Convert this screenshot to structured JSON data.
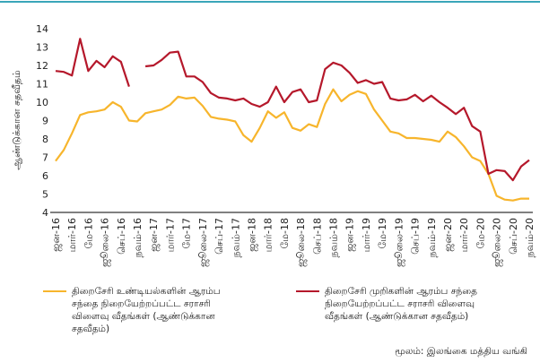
{
  "chart_data": {
    "type": "line",
    "ylabel": "ஆண்டுக்கான சதவீதம்",
    "source": "மூலம்: இலங்கை மத்திய வங்கி",
    "categories": [
      "ஜன-16",
      null,
      "மார்-16",
      null,
      "மே-16",
      null,
      "ஜூலை-16",
      null,
      "செப்-16",
      null,
      "நவம்-16",
      null,
      "ஜன-17",
      null,
      "மார்-17",
      null,
      "மே-17",
      null,
      "ஜூலை-17",
      null,
      "செப்-17",
      null,
      "நவம்-17",
      null,
      "ஜன-18",
      null,
      "மார்-18",
      null,
      "மே-18",
      null,
      "ஜூலை-18",
      null,
      "செப்-18",
      null,
      "நவம்-18",
      null,
      "ஜன-19",
      null,
      "மார்-19",
      null,
      "மே-19",
      null,
      "ஜூலை-19",
      null,
      "செப்-19",
      null,
      "நவம்-19",
      null,
      "ஜன-20",
      null,
      "மார்-20",
      null,
      "மே-20",
      null,
      "ஜூலை-20",
      null,
      "செப்-20",
      null,
      "நவம்-20"
    ],
    "series": [
      {
        "name": "திறைசேரி உண்டியல்களின் ஆரம்ப சந்தை நிறையேற்றப்பட்ட சராசரி விளைவு வீதங்கள் (ஆண்டுக்கான சதவீதம்)",
        "color": "#f7b52c",
        "values": [
          6.8,
          7.4,
          8.3,
          9.3,
          9.45,
          9.5,
          9.6,
          10.0,
          9.75,
          9.0,
          8.95,
          9.4,
          9.5,
          9.6,
          9.85,
          10.3,
          10.2,
          10.25,
          9.8,
          9.2,
          9.1,
          9.05,
          8.95,
          8.2,
          7.85,
          8.6,
          9.5,
          9.15,
          9.45,
          8.6,
          8.45,
          8.8,
          8.65,
          9.9,
          10.7,
          10.05,
          10.4,
          10.6,
          10.45,
          9.6,
          9.0,
          8.4,
          8.3,
          8.05,
          8.05,
          8.0,
          7.95,
          7.85,
          8.4,
          8.1,
          7.6,
          7.0,
          6.8,
          6.1,
          4.9,
          4.7,
          4.65,
          4.75,
          4.75
        ]
      },
      {
        "name": "திறைசேரி முறிகளின் ஆரம்ப சந்தை நிறையேற்றப்பட்ட சராசரி விளைவு வீதங்கள் (ஆண்டுக்கான சதவீதம்)",
        "color": "#b5182b",
        "values": [
          11.7,
          11.65,
          11.45,
          13.45,
          11.7,
          12.25,
          11.9,
          12.5,
          12.2,
          10.85,
          null,
          11.95,
          12.0,
          12.3,
          12.7,
          12.75,
          11.4,
          11.4,
          11.1,
          10.5,
          10.25,
          10.2,
          10.1,
          10.2,
          9.9,
          9.75,
          10.0,
          10.85,
          10.0,
          10.55,
          10.7,
          10.0,
          10.1,
          11.8,
          12.15,
          12.0,
          11.6,
          11.05,
          11.2,
          11.0,
          11.1,
          10.2,
          10.1,
          10.15,
          10.4,
          10.05,
          10.35,
          10.0,
          9.7,
          9.35,
          9.7,
          8.7,
          8.4,
          6.1,
          6.3,
          6.25,
          5.75,
          6.5,
          6.85
        ]
      }
    ],
    "ylim": [
      4,
      14
    ],
    "yticks": [
      4,
      5,
      6,
      7,
      8,
      9,
      10,
      11,
      12,
      13,
      14
    ],
    "grid": false
  }
}
